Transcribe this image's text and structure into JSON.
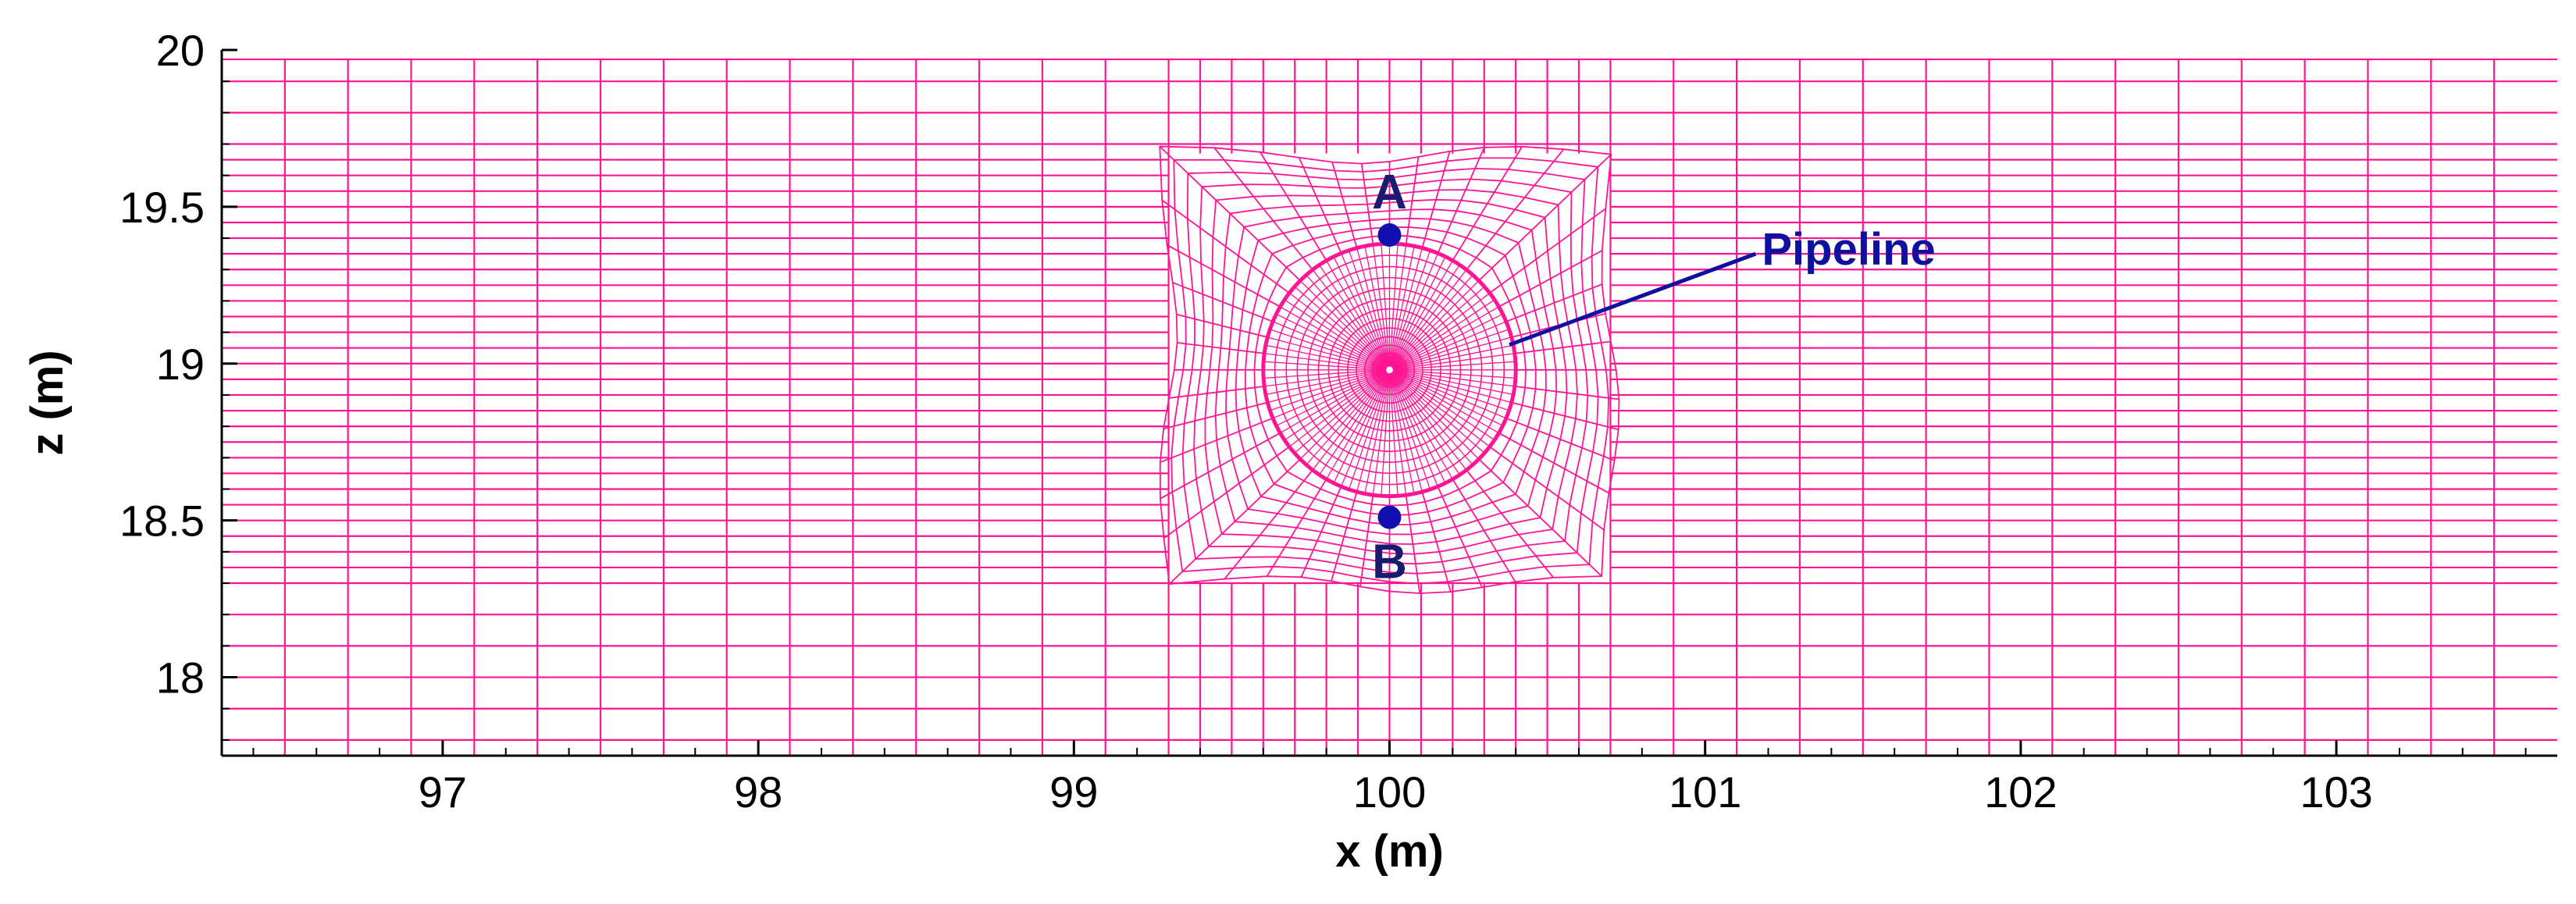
{
  "chart_data": {
    "type": "mesh",
    "xlabel": "x (m)",
    "ylabel": "z (m)",
    "xlim": [
      96.3,
      103.7
    ],
    "ylim": [
      17.75,
      20.0
    ],
    "x_ticks": [
      {
        "value": 97,
        "label": "97"
      },
      {
        "value": 98,
        "label": "98"
      },
      {
        "value": 99,
        "label": "99"
      },
      {
        "value": 100,
        "label": "100"
      },
      {
        "value": 101,
        "label": "101"
      },
      {
        "value": 102,
        "label": "102"
      },
      {
        "value": 103,
        "label": "103"
      }
    ],
    "y_ticks": [
      {
        "value": 18,
        "label": "18"
      },
      {
        "value": 18.5,
        "label": "18.5"
      },
      {
        "value": 19,
        "label": "19"
      },
      {
        "value": 19.5,
        "label": "19.5"
      },
      {
        "value": 20,
        "label": "20"
      }
    ],
    "mesh": {
      "color": "#ff1493",
      "background_x_lines": [
        96.5,
        96.7,
        96.9,
        97.1,
        97.3,
        97.5,
        97.7,
        97.9,
        98.1,
        98.3,
        98.5,
        98.7,
        98.9,
        99.1,
        99.3,
        99.4,
        99.5,
        99.6,
        99.7,
        99.8,
        99.9,
        100.0,
        100.1,
        100.2,
        100.3,
        100.4,
        100.5,
        100.6,
        100.7,
        100.9,
        101.1,
        101.3,
        101.5,
        101.7,
        101.9,
        102.1,
        102.3,
        102.5,
        102.7,
        102.9,
        103.1,
        103.3,
        103.5
      ],
      "background_z_lines": [
        17.8,
        17.9,
        18.0,
        18.1,
        18.2,
        18.3,
        18.35,
        18.4,
        18.45,
        18.5,
        18.55,
        18.6,
        18.65,
        18.7,
        18.75,
        18.8,
        18.85,
        18.9,
        18.95,
        19.0,
        19.05,
        19.1,
        19.15,
        19.2,
        19.25,
        19.3,
        19.35,
        19.4,
        19.45,
        19.5,
        19.55,
        19.6,
        19.65,
        19.7,
        19.8,
        19.9,
        19.97
      ],
      "refined_box": {
        "x": [
          99.3,
          100.7
        ],
        "z": [
          18.3,
          19.67
        ]
      },
      "pipeline_center": {
        "x": 100.0,
        "z": 18.98
      },
      "pipeline_radius": 0.4
    },
    "points": [
      {
        "name": "A",
        "x": 100.0,
        "z": 19.41,
        "color": "#1010b0"
      },
      {
        "name": "B",
        "x": 100.0,
        "z": 18.51,
        "color": "#1010b0"
      }
    ],
    "annotations": [
      {
        "text": "Pipeline",
        "from": {
          "x": 100.38,
          "z": 19.06
        },
        "to": {
          "x": 101.16,
          "z": 19.35
        },
        "color": "#0f0fa0"
      }
    ]
  }
}
